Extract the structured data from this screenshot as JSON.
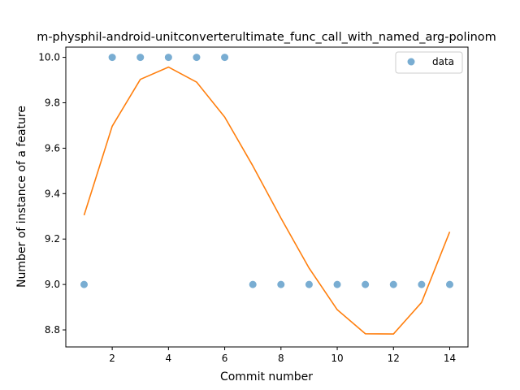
{
  "chart_data": {
    "type": "scatter",
    "title": "m-physphil-android-unitconverterultimate_func_call_with_named_arg-polinom",
    "xlabel": "Commit number",
    "ylabel": "Number of instance of a feature",
    "xlim": [
      0.35,
      14.65
    ],
    "ylim": [
      8.725,
      10.045
    ],
    "xticks": [
      2,
      4,
      6,
      8,
      10,
      12,
      14
    ],
    "yticks": [
      8.8,
      9.0,
      9.2,
      9.4,
      9.6,
      9.8,
      10.0
    ],
    "grid": false,
    "legend_position": "top-right",
    "series": [
      {
        "name": "data",
        "kind": "scatter",
        "color": "#1f77b4",
        "x": [
          1,
          2,
          3,
          4,
          5,
          6,
          7,
          8,
          9,
          10,
          11,
          12,
          13,
          14
        ],
        "y": [
          9,
          10,
          10,
          10,
          10,
          10,
          9,
          9,
          9,
          9,
          9,
          9,
          9,
          9
        ]
      },
      {
        "kind": "line",
        "color": "#ff7f0e",
        "x": [
          1,
          2,
          3,
          4,
          5,
          6,
          7,
          8,
          9,
          10,
          11,
          12,
          13,
          14
        ],
        "y": [
          9.305,
          9.697,
          9.903,
          9.957,
          9.891,
          9.737,
          9.522,
          9.292,
          9.072,
          8.889,
          8.783,
          8.782,
          8.921,
          9.232
        ]
      }
    ]
  }
}
